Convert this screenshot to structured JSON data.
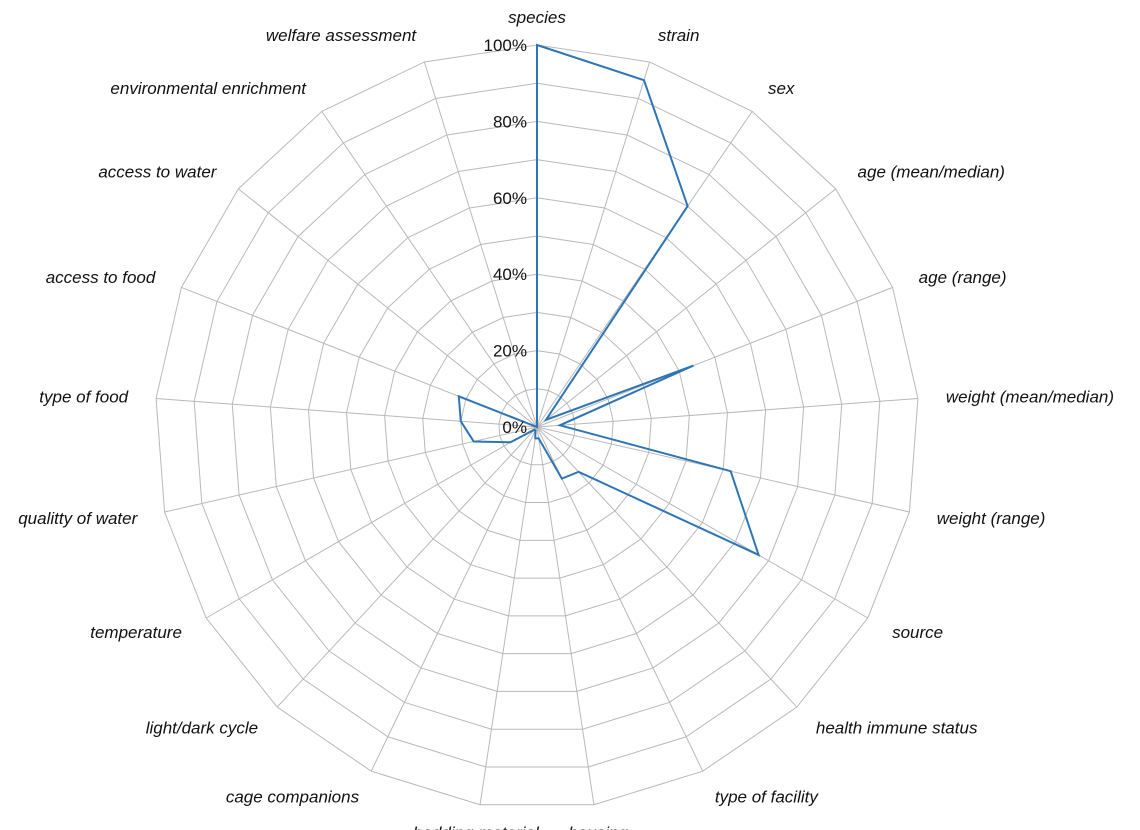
{
  "chart_data": {
    "type": "radar",
    "title": "",
    "categories": [
      "species",
      "strain",
      "sex",
      "age (mean/median)",
      "age (range)",
      "weight (mean/median)",
      "weight (range)",
      "source",
      "health immune status",
      "type of facility",
      "housing",
      "bedding material",
      "cage companions",
      "light/dark cycle",
      "temperature",
      "qualitty of water",
      "type of food",
      "access to food",
      "access to water",
      "environmental enrichment",
      "welfare assessment"
    ],
    "series": [
      {
        "color": "#2e75b6",
        "values": [
          100,
          95,
          70,
          3,
          44,
          6,
          52,
          67,
          16,
          15,
          3,
          3,
          1,
          1,
          8,
          17,
          20,
          22,
          0,
          0,
          0
        ]
      }
    ],
    "rlim": [
      0,
      100
    ],
    "ticks": [
      "0%",
      "20%",
      "40%",
      "60%",
      "80%",
      "100%"
    ],
    "grid": true,
    "legend": "none"
  }
}
